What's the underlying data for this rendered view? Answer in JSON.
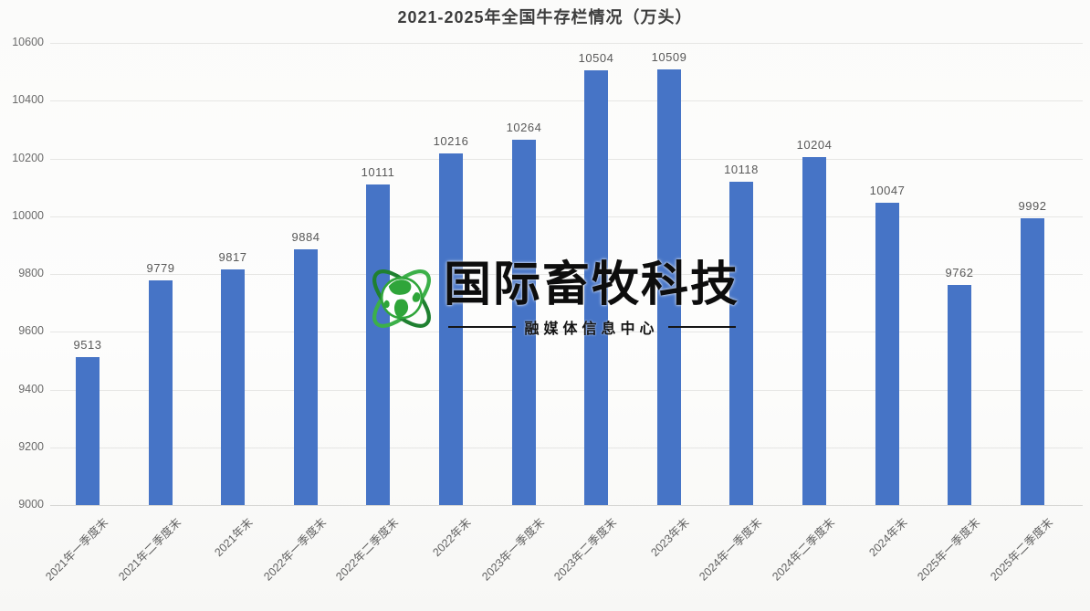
{
  "page": {
    "background": "#fbfbfa"
  },
  "chart_data": {
    "type": "bar",
    "title": "2021-2025年全国牛存栏情况（万头）",
    "categories": [
      "2021年一季度末",
      "2021年二季度末",
      "2021年末",
      "2022年一季度末",
      "2022年二季度末",
      "2022年末",
      "2023年一季度末",
      "2023年二季度末",
      "2023年末",
      "2024年一季度末",
      "2024年二季度末",
      "2024年末",
      "2025年一季度末",
      "2025年二季度末"
    ],
    "values": [
      9513,
      9779,
      9817,
      9884,
      10111,
      10216,
      10264,
      10504,
      10509,
      10118,
      10204,
      10047,
      9762,
      9992
    ],
    "yticks": [
      9000,
      9200,
      9400,
      9600,
      9800,
      10000,
      10200,
      10400,
      10600
    ],
    "ylim": [
      9000,
      10600
    ],
    "xlabel": "",
    "ylabel": "",
    "grid": true,
    "legend_position": "none",
    "value_labels": true,
    "bar_color": "#4674c6",
    "gridline_color": "#e6e6e4",
    "title_color": "#3d3d3d",
    "value_label_color": "#595959",
    "axis_tick_color": "#6a6a6a"
  },
  "watermark": {
    "logo_icon": "globe-orbit-icon",
    "name": "国际畜牧科技",
    "subtitle": "融媒体信息中心",
    "name_color": "#0d0d0d",
    "logo_green": "#2fa53a",
    "logo_green_dark": "#1f8030"
  }
}
